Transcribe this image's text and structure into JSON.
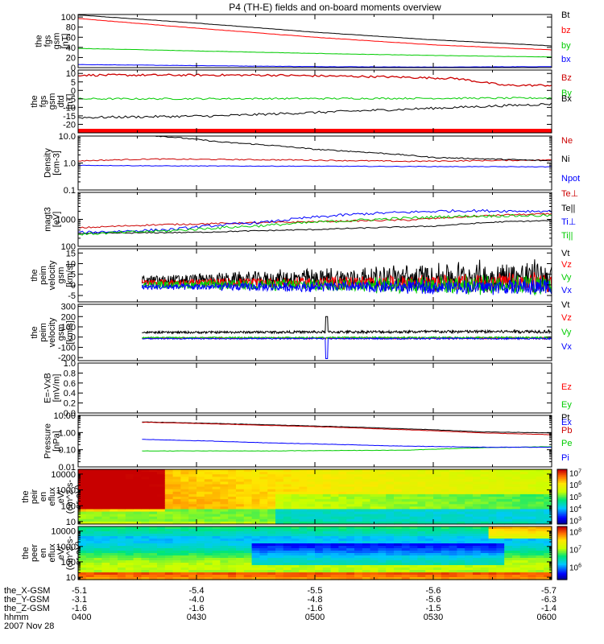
{
  "chart_data": {
    "type": "line",
    "title": "P4 (TH-E) fields and on-board moments overview",
    "date": "2007 Nov 28",
    "x_ticks": [
      {
        "hhmm": "0400",
        "x_gsm": "-5.1",
        "y_gsm": "-3.1",
        "z_gsm": "-1.6"
      },
      {
        "hhmm": "0430",
        "x_gsm": "-5.4",
        "y_gsm": "-4.0",
        "z_gsm": "-1.6"
      },
      {
        "hhmm": "0500",
        "x_gsm": "-5.5",
        "y_gsm": "-4.8",
        "z_gsm": "-1.6"
      },
      {
        "hhmm": "0530",
        "x_gsm": "-5.6",
        "y_gsm": "-5.6",
        "z_gsm": "-1.5"
      },
      {
        "hhmm": "0600",
        "x_gsm": "-5.7",
        "y_gsm": "-6.3",
        "z_gsm": "-1.4"
      }
    ],
    "x_row_labels": [
      "the_X-GSM",
      "the_Y-GSM",
      "the_Z-GSM",
      "hhmm"
    ],
    "panels": [
      {
        "id": "fgs-gsm",
        "ylabel": [
          "the",
          "fgs",
          "gsm",
          "[nT]"
        ],
        "scale": "linear",
        "ylim": [
          0,
          105
        ],
        "ticks": [
          {
            "v": 0,
            "t": "0"
          },
          {
            "v": 20,
            "t": "20"
          },
          {
            "v": 40,
            "t": "40"
          },
          {
            "v": 60,
            "t": "60"
          },
          {
            "v": 80,
            "t": "80"
          },
          {
            "v": 100,
            "t": "100"
          }
        ],
        "series": [
          {
            "name": "Bt",
            "color": "#000000",
            "x": [
              0.0,
              0.5,
              1.0,
              1.5,
              2.0
            ],
            "values": [
              104,
              88,
              70,
              55,
              43
            ],
            "noise": 0.3
          },
          {
            "name": "bz",
            "color": "#ff0000",
            "x": [
              0.0,
              0.5,
              1.0,
              1.5,
              2.0
            ],
            "values": [
              97,
              78,
              60,
              45,
              35
            ],
            "noise": 0.3
          },
          {
            "name": "by",
            "color": "#00cc00",
            "x": [
              0.0,
              0.5,
              1.0,
              1.5,
              2.0
            ],
            "values": [
              38,
              33,
              28,
              24,
              21
            ],
            "noise": 0.3
          },
          {
            "name": "bx",
            "color": "#0000ff",
            "x": [
              0.0,
              0.5,
              1.0,
              1.5,
              2.0
            ],
            "values": [
              6,
              4,
              2,
              1,
              2
            ],
            "noise": 0.3
          }
        ]
      },
      {
        "id": "fgs-gsm-detrended",
        "ylabel": [
          "the",
          "fgs",
          "gsm",
          "dtd",
          "[nT]"
        ],
        "scale": "linear",
        "ylim": [
          -25,
          12
        ],
        "ticks": [
          {
            "v": 10,
            "t": "10"
          },
          {
            "v": 5,
            "t": "5"
          },
          {
            "v": 0,
            "t": "0"
          },
          {
            "v": -5,
            "t": "-5"
          },
          {
            "v": -10,
            "t": "-10"
          },
          {
            "v": -15,
            "t": "-15"
          },
          {
            "v": -20,
            "t": "-20"
          }
        ],
        "series": [
          {
            "name": "Bz",
            "color": "#cc0000",
            "x": [
              0.0,
              0.8,
              1.3,
              1.6,
              1.8,
              2.0
            ],
            "values": [
              9,
              9,
              8,
              7,
              3,
              3
            ],
            "noise": 0.6
          },
          {
            "name": "By",
            "color": "#00cc00",
            "x": [
              0.0,
              1.0,
              2.0
            ],
            "values": [
              -5,
              -4.8,
              -4.5
            ],
            "noise": 0.5
          },
          {
            "name": "Bx",
            "color": "#000000",
            "x": [
              0.0,
              0.6,
              1.2,
              1.6,
              2.0
            ],
            "values": [
              -16,
              -15,
              -12,
              -10,
              -8
            ],
            "noise": 0.7
          }
        ],
        "bottom_band": {
          "color": "#ff0000"
        }
      },
      {
        "id": "density",
        "ylabel": [
          "Density",
          "[cm-3]"
        ],
        "scale": "log",
        "ylim": [
          0.1,
          10
        ],
        "ticks": [
          {
            "v": 10,
            "t": "10.0"
          },
          {
            "v": 1,
            "t": "1.0"
          },
          {
            "v": 0.1,
            "t": "0.1"
          }
        ],
        "series": [
          {
            "name": "Ne",
            "color": "#cc0000",
            "x": [
              0.0,
              0.3,
              0.9,
              1.4,
              2.0
            ],
            "values": [
              1.2,
              1.4,
              1.3,
              1.15,
              1.3
            ],
            "noise": 0.02,
            "start": 0.0
          },
          {
            "name": "Ni",
            "color": "#000000",
            "x": [
              0.27,
              0.6,
              1.0,
              1.5,
              2.0
            ],
            "values": [
              11,
              6,
              3.2,
              1.6,
              1.2
            ],
            "noise": 0.02,
            "start": 0.27
          },
          {
            "name": "Npot",
            "color": "#0000ff",
            "x": [
              0.0,
              0.4,
              1.0,
              1.5,
              2.0
            ],
            "values": [
              0.82,
              0.78,
              0.76,
              0.74,
              0.72
            ],
            "noise": 0.01,
            "start": 0.0
          }
        ]
      },
      {
        "id": "temperature",
        "ylabel": [
          "magt3",
          "[eV]"
        ],
        "scale": "log",
        "ylim": [
          100,
          10000
        ],
        "ticks": [
          {
            "v": 1000,
            "t": "1000"
          },
          {
            "v": 100,
            "t": "100"
          }
        ],
        "series": [
          {
            "name": "Te⊥",
            "color": "#cc0000",
            "x": [
              0.0,
              0.3,
              0.8,
              1.4,
              1.8,
              2.0
            ],
            "values": [
              480,
              620,
              760,
              950,
              1450,
              1600
            ],
            "noise": 0.03
          },
          {
            "name": "Te||",
            "color": "#000000",
            "x": [
              0.0,
              0.5,
              1.0,
              1.5,
              1.8,
              2.0
            ],
            "values": [
              300,
              330,
              420,
              560,
              820,
              900
            ],
            "noise": 0.02
          },
          {
            "name": "Ti⊥",
            "color": "#0000ff",
            "x": [
              0.0,
              0.4,
              0.8,
              1.2,
              1.6,
              2.0
            ],
            "values": [
              320,
              420,
              800,
              1600,
              2100,
              2000
            ],
            "noise": 0.05
          },
          {
            "name": "Ti||",
            "color": "#00cc00",
            "x": [
              0.0,
              0.4,
              0.8,
              1.2,
              1.6,
              2.0
            ],
            "values": [
              280,
              380,
              600,
              950,
              1300,
              1400
            ],
            "noise": 0.05
          }
        ]
      },
      {
        "id": "velocity-peim-1",
        "ylabel": [
          "the",
          "peim",
          "velocity",
          "gsm",
          "[km/s]"
        ],
        "scale": "linear",
        "ylim": [
          -8,
          17
        ],
        "ticks": [
          {
            "v": 15,
            "t": "15"
          },
          {
            "v": 10,
            "t": "10"
          },
          {
            "v": 5,
            "t": "5"
          },
          {
            "v": 0,
            "t": "0"
          },
          {
            "v": -5,
            "t": "-5"
          }
        ],
        "series": [
          {
            "name": "Vt",
            "color": "#000000",
            "x": [
              0.27,
              2.0
            ],
            "values": [
              2,
              4
            ],
            "noise": 2.2,
            "noise_growth": 2.2,
            "start": 0.27
          },
          {
            "name": "Vz",
            "color": "#ff0000",
            "x": [
              0.27,
              2.0
            ],
            "values": [
              1,
              1
            ],
            "noise": 1.5,
            "noise_growth": 1.6,
            "start": 0.27
          },
          {
            "name": "Vy",
            "color": "#00cc00",
            "x": [
              0.27,
              2.0
            ],
            "values": [
              0,
              0
            ],
            "noise": 1.5,
            "noise_growth": 1.8,
            "start": 0.27
          },
          {
            "name": "Vx",
            "color": "#0000ff",
            "x": [
              0.27,
              2.0
            ],
            "values": [
              -1,
              -1
            ],
            "noise": 1.2,
            "noise_growth": 1.8,
            "start": 0.27
          }
        ]
      },
      {
        "id": "velocity-peim-2",
        "ylabel": [
          "the",
          "peim",
          "velocity",
          "gsm",
          "[km/s]"
        ],
        "scale": "linear",
        "ylim": [
          -230,
          320
        ],
        "ticks": [
          {
            "v": 300,
            "t": "300"
          },
          {
            "v": 200,
            "t": "200"
          },
          {
            "v": 100,
            "t": "100"
          },
          {
            "v": 0,
            "t": "0"
          },
          {
            "v": -100,
            "t": "-100"
          },
          {
            "v": -200,
            "t": "-200"
          }
        ],
        "series": [
          {
            "name": "Vt",
            "color": "#000000",
            "x": [
              0.27,
              2.0
            ],
            "values": [
              45,
              55
            ],
            "noise": 10,
            "noise_growth": 0.5,
            "start": 0.27,
            "spike": {
              "at": 1.05,
              "v": 200
            }
          },
          {
            "name": "Vz",
            "color": "#ff0000",
            "x": [
              0.27,
              2.0
            ],
            "values": [
              -10,
              -10
            ],
            "noise": 6,
            "noise_growth": 0.5,
            "start": 0.27
          },
          {
            "name": "Vy",
            "color": "#00cc00",
            "x": [
              0.27,
              2.0
            ],
            "values": [
              -5,
              -5
            ],
            "noise": 6,
            "noise_growth": 0.5,
            "start": 0.27
          },
          {
            "name": "Vx",
            "color": "#0000ff",
            "x": [
              0.27,
              2.0
            ],
            "values": [
              -15,
              -15
            ],
            "noise": 5,
            "noise_growth": 0.5,
            "start": 0.27,
            "spike": {
              "at": 1.05,
              "v": -210
            }
          }
        ]
      },
      {
        "id": "efield",
        "ylabel": [
          "E=-VxB",
          "[mV/m]"
        ],
        "scale": "linear",
        "ylim": [
          0,
          1
        ],
        "ticks": [
          {
            "v": 1.0,
            "t": "1.0"
          },
          {
            "v": 0.8,
            "t": "0.8"
          },
          {
            "v": 0.6,
            "t": "0.6"
          },
          {
            "v": 0.4,
            "t": "0.4"
          },
          {
            "v": 0.2,
            "t": "0.2"
          },
          {
            "v": 0.0,
            "t": "0.0"
          }
        ],
        "series": [
          {
            "name": "Ez",
            "color": "#ff0000",
            "x": [],
            "values": []
          },
          {
            "name": "Ey",
            "color": "#00cc00",
            "x": [],
            "values": []
          },
          {
            "name": "Ex",
            "color": "#0000ff",
            "x": [],
            "values": []
          }
        ]
      },
      {
        "id": "pressure",
        "ylabel": [
          "Pressure",
          "[nPa]"
        ],
        "scale": "log",
        "ylim": [
          0.01,
          10
        ],
        "ticks": [
          {
            "v": 10,
            "t": "10.00"
          },
          {
            "v": 1,
            "t": "1.00"
          },
          {
            "v": 0.1,
            "t": "0.10"
          },
          {
            "v": 0.01,
            "t": "0.01"
          }
        ],
        "series": [
          {
            "name": "Pt",
            "color": "#000000",
            "x": [
              0.27,
              0.8,
              1.3,
              1.7,
              2.0
            ],
            "values": [
              4.2,
              2.8,
              1.8,
              1.1,
              0.95
            ],
            "noise": 0.01,
            "start": 0.27
          },
          {
            "name": "Pb",
            "color": "#cc0000",
            "x": [
              0.27,
              0.8,
              1.3,
              1.7,
              2.0
            ],
            "values": [
              4.0,
              2.6,
              1.6,
              0.95,
              0.75
            ],
            "noise": 0.01,
            "start": 0.27
          },
          {
            "name": "Pe",
            "color": "#00cc00",
            "x": [
              0.27,
              0.8,
              1.4,
              1.7,
              2.0
            ],
            "values": [
              0.085,
              0.085,
              0.095,
              0.13,
              0.15
            ],
            "noise": 0.01,
            "start": 0.27
          },
          {
            "name": "Pi",
            "color": "#0000ff",
            "x": [
              0.27,
              0.8,
              1.3,
              1.7,
              2.0
            ],
            "values": [
              0.4,
              0.25,
              0.17,
              0.14,
              0.14
            ],
            "noise": 0.01,
            "start": 0.27
          }
        ]
      },
      {
        "id": "peir-spectrogram",
        "type": "heatmap",
        "ylabel": [
          "the",
          "peir",
          "en",
          "eflux",
          "eV/",
          "(cm^2-s-",
          "sr-eV)"
        ],
        "scale": "log",
        "ylim": [
          7,
          20000
        ],
        "ticks": [
          {
            "v": 10000,
            "t": "10000"
          },
          {
            "v": 1000,
            "t": "1000"
          },
          {
            "v": 100,
            "t": "100"
          },
          {
            "v": 10,
            "t": "10"
          }
        ],
        "colorbar": {
          "ticks": [
            {
              "v": 7,
              "t": "10^7"
            },
            {
              "v": 6,
              "t": "10^6"
            },
            {
              "v": 5,
              "t": "10^5"
            },
            {
              "v": 4,
              "t": "10^4"
            },
            {
              "v": 3,
              "t": "10^3"
            }
          ],
          "min": 2.7,
          "max": 7.3
        }
      },
      {
        "id": "peer-spectrogram",
        "type": "heatmap",
        "ylabel": [
          "the",
          "peer",
          "en",
          "eflux",
          "eV/",
          "(cm^2-s-",
          "sr-eV)"
        ],
        "scale": "log",
        "ylim": [
          7,
          20000
        ],
        "ticks": [
          {
            "v": 10000,
            "t": "10000"
          },
          {
            "v": 1000,
            "t": "1000"
          },
          {
            "v": 100,
            "t": "100"
          },
          {
            "v": 10,
            "t": "10"
          }
        ],
        "colorbar": {
          "ticks": [
            {
              "v": 8,
              "t": "10^8"
            },
            {
              "v": 7,
              "t": "10^7"
            },
            {
              "v": 6,
              "t": "10^6"
            }
          ],
          "min": 5.3,
          "max": 8.3
        }
      }
    ]
  }
}
